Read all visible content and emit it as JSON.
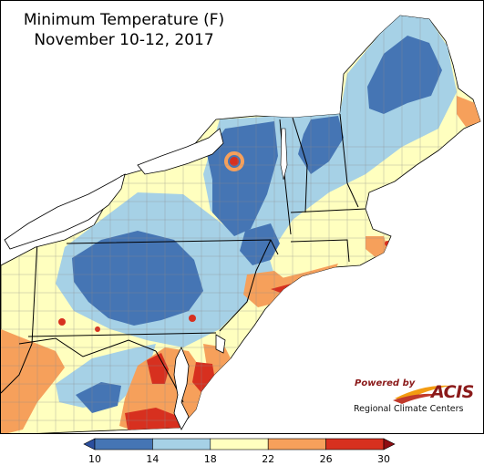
{
  "title": {
    "line1": "Minimum Temperature (F)",
    "line2": "November 10-12, 2017"
  },
  "logo": {
    "powered_by": "Powered by",
    "brand": "ACIS",
    "subtitle": "Regional Climate Centers"
  },
  "legend": {
    "ticks": [
      "10",
      "14",
      "18",
      "22",
      "26",
      "30"
    ],
    "bins": [
      {
        "range": "10-14",
        "color": "#4575b4"
      },
      {
        "range": "14-18",
        "color": "#a6d1e6"
      },
      {
        "range": "18-22",
        "color": "#ffffbf"
      },
      {
        "range": "22-26",
        "color": "#f6a05b"
      },
      {
        "range": "26-30",
        "color": "#d7301f"
      }
    ],
    "below_color": "#2b4f9e",
    "above_color": "#8e0d12"
  },
  "colors": {
    "water": "#ffffff",
    "state_border": "#000000",
    "county_border": "#8a8a8a"
  }
}
